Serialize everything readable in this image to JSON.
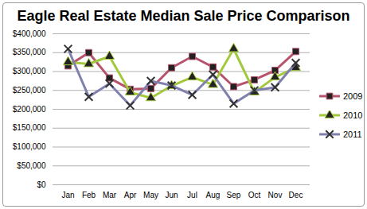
{
  "chart_data": {
    "type": "line",
    "title": "Eagle Real Estate Median Sale Price Comparison",
    "categories": [
      "Jan",
      "Feb",
      "Mar",
      "Apr",
      "May",
      "Jun",
      "Jul",
      "Aug",
      "Sep",
      "Oct",
      "Nov",
      "Dec"
    ],
    "series": [
      {
        "name": "2009",
        "color": "#b8536d",
        "marker": "square",
        "values": [
          315000,
          350000,
          283000,
          253000,
          255000,
          310000,
          340000,
          312000,
          260000,
          278000,
          303000,
          353000
        ]
      },
      {
        "name": "2010",
        "color": "#a2c83b",
        "marker": "triangle",
        "values": [
          325000,
          320000,
          340000,
          245000,
          230000,
          262000,
          285000,
          265000,
          360000,
          245000,
          285000,
          310000
        ]
      },
      {
        "name": "2011",
        "color": "#7f80ae",
        "marker": "times",
        "values": [
          360000,
          233000,
          268000,
          210000,
          275000,
          263000,
          238000,
          292000,
          215000,
          250000,
          258000,
          323000
        ]
      }
    ],
    "ylim": [
      0,
      400000
    ],
    "yticks": [
      {
        "value": 0,
        "label": "$0"
      },
      {
        "value": 50000,
        "label": "$50,000"
      },
      {
        "value": 100000,
        "label": "$100,000"
      },
      {
        "value": 150000,
        "label": "$150,000"
      },
      {
        "value": 200000,
        "label": "$200,000"
      },
      {
        "value": 250000,
        "label": "$250,000"
      },
      {
        "value": 300000,
        "label": "$300,000"
      },
      {
        "value": 350000,
        "label": "$350,000"
      },
      {
        "value": 400000,
        "label": "$400,000"
      }
    ],
    "grid": true,
    "legend": "right"
  }
}
